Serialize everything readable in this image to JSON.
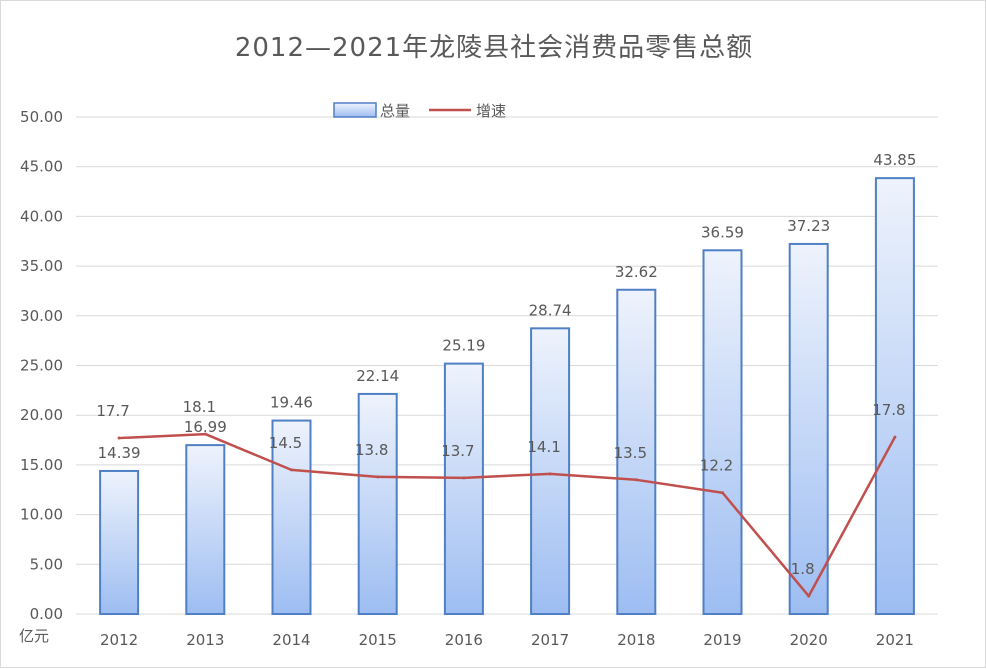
{
  "chart_data": {
    "type": "bar",
    "title": "2012—2021年龙陵县社会消费品零售总额",
    "ylabel": "亿元",
    "xlabel": "",
    "categories": [
      "2012",
      "2013",
      "2014",
      "2015",
      "2016",
      "2017",
      "2018",
      "2019",
      "2020",
      "2021"
    ],
    "ylim": [
      0,
      50
    ],
    "yticks": [
      "0.00",
      "5.00",
      "10.00",
      "15.00",
      "20.00",
      "25.00",
      "30.00",
      "35.00",
      "40.00",
      "45.00",
      "50.00"
    ],
    "grid": true,
    "legend_position": "top",
    "series": [
      {
        "name": "总量",
        "type": "bar",
        "values": [
          14.39,
          16.99,
          19.46,
          22.14,
          25.19,
          28.74,
          32.62,
          36.59,
          37.23,
          43.85
        ],
        "labels": [
          "14.39",
          "16.99",
          "19.46",
          "22.14",
          "25.19",
          "28.74",
          "32.62",
          "36.59",
          "37.23",
          "43.85"
        ],
        "color": "#4f7fc4"
      },
      {
        "name": "增速",
        "type": "line",
        "values": [
          17.7,
          18.1,
          14.5,
          13.8,
          13.7,
          14.1,
          13.5,
          12.2,
          1.8,
          17.8
        ],
        "labels": [
          "17.7",
          "18.1",
          "14.5",
          "13.8",
          "13.7",
          "14.1",
          "13.5",
          "12.2",
          "1.8",
          "17.8"
        ],
        "color": "#c0504d"
      }
    ]
  }
}
